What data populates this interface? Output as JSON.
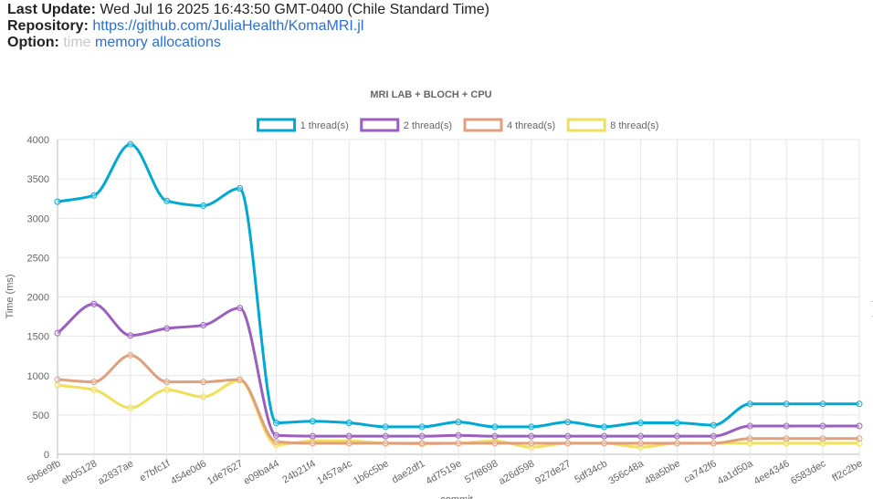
{
  "header": {
    "last_update_label": "Last Update:",
    "last_update_value": "Wed Jul 16 2025 16:43:50 GMT-0400 (Chile Standard Time)",
    "repository_label": "Repository:",
    "repository_url": "https://github.com/JuliaHealth/KomaMRI.jl",
    "option_label": "Option:",
    "options": [
      "time",
      "memory allocations"
    ]
  },
  "chart_data": {
    "type": "line",
    "title": "MRI LAB + BLOCH + CPU",
    "xlabel": "commit",
    "ylabel": "Time (ms)",
    "ylim": [
      0,
      4000
    ],
    "yticks": [
      0,
      500,
      1000,
      1500,
      2000,
      2500,
      3000,
      3500,
      4000
    ],
    "grid": true,
    "legend": "top",
    "categories": [
      "5b6e9fb",
      "eb05128",
      "a2837ae",
      "e7bfc1f",
      "454e0d6",
      "1de7627",
      "e09ba44",
      "24b21f4",
      "1457a4c",
      "1b6c5be",
      "dae2df1",
      "4d7519e",
      "57f8698",
      "a26d598",
      "927de27",
      "5df34cb",
      "356c48a",
      "48a5bbe",
      "ca742f6",
      "4a1d50a",
      "4ee4346",
      "6583dec",
      "ff2c2be"
    ],
    "series": [
      {
        "name": "1 thread(s)",
        "color": "#00a9d4",
        "values": [
          3210,
          3290,
          3940,
          3220,
          3160,
          3380,
          400,
          420,
          400,
          350,
          350,
          410,
          350,
          350,
          410,
          350,
          400,
          400,
          370,
          640,
          640,
          640,
          640
        ]
      },
      {
        "name": "2 thread(s)",
        "color": "#9b5fbf",
        "values": [
          1540,
          1910,
          1510,
          1600,
          1640,
          1860,
          240,
          230,
          230,
          230,
          230,
          240,
          230,
          230,
          230,
          230,
          230,
          230,
          230,
          360,
          360,
          360,
          360
        ]
      },
      {
        "name": "4 thread(s)",
        "color": "#e0a07e",
        "values": [
          950,
          920,
          1260,
          920,
          920,
          950,
          160,
          140,
          140,
          140,
          140,
          140,
          140,
          140,
          140,
          140,
          140,
          140,
          140,
          200,
          200,
          200,
          200
        ]
      },
      {
        "name": "8 thread(s)",
        "color": "#f0df5a",
        "values": [
          880,
          820,
          590,
          820,
          730,
          940,
          120,
          170,
          170,
          140,
          130,
          140,
          170,
          90,
          140,
          140,
          90,
          140,
          140,
          140,
          140,
          140,
          140
        ]
      }
    ]
  }
}
